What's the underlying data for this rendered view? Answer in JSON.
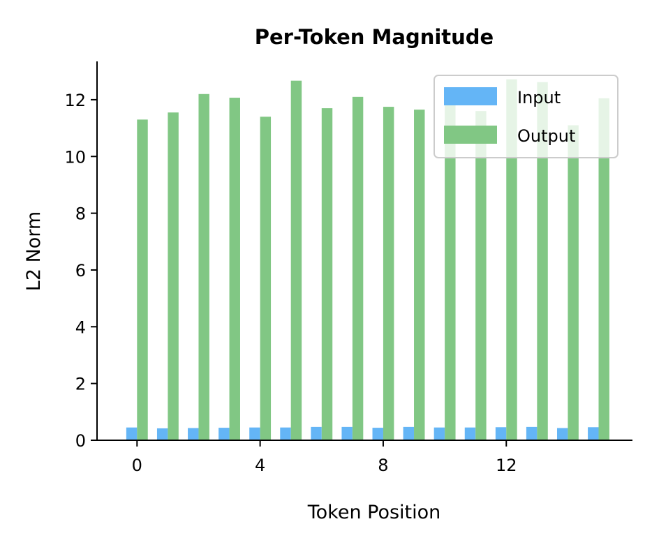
{
  "chart_data": {
    "type": "bar",
    "title": "Per-Token Magnitude",
    "xlabel": "Token Position",
    "ylabel": "L2 Norm",
    "x": [
      0,
      1,
      2,
      3,
      4,
      5,
      6,
      7,
      8,
      9,
      10,
      11,
      12,
      13,
      14,
      15
    ],
    "xticks": [
      "0",
      "4",
      "8",
      "12"
    ],
    "xtick_values": [
      0,
      4,
      8,
      12
    ],
    "yticks": [
      "0",
      "2",
      "4",
      "6",
      "8",
      "10",
      "12"
    ],
    "ytick_values": [
      0,
      2,
      4,
      6,
      8,
      10,
      12
    ],
    "xlim": [
      -1.3,
      16.1
    ],
    "ylim": [
      0,
      13.35
    ],
    "grid": false,
    "legend_position": "top-right",
    "series": [
      {
        "name": "Input",
        "color": "#64b5f6",
        "values": [
          0.45,
          0.42,
          0.43,
          0.44,
          0.45,
          0.45,
          0.47,
          0.47,
          0.44,
          0.47,
          0.45,
          0.45,
          0.46,
          0.47,
          0.43,
          0.46
        ]
      },
      {
        "name": "Output",
        "color": "#81c784",
        "values": [
          11.3,
          11.55,
          12.2,
          12.07,
          11.4,
          12.67,
          11.7,
          12.1,
          11.75,
          11.65,
          11.95,
          11.6,
          12.72,
          12.62,
          11.1,
          12.05
        ]
      }
    ]
  }
}
